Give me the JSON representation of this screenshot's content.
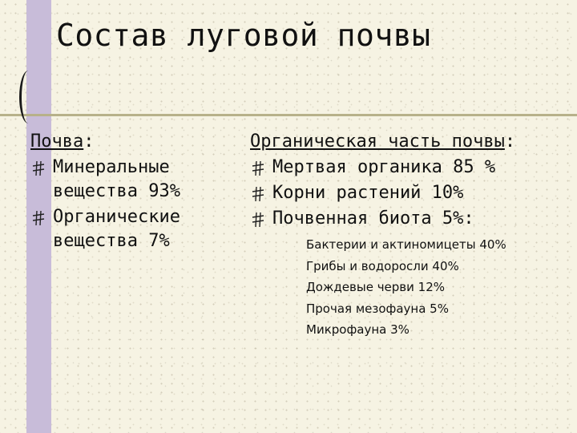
{
  "title": "Состав луговой почвы",
  "left": {
    "heading": "Почва",
    "heading_suffix": ":",
    "items": [
      "Минеральные вещества 93%",
      "Органические вещества 7%"
    ]
  },
  "right": {
    "heading": "Органическая часть почвы",
    "heading_suffix": ":",
    "items": [
      "Мертвая органика 85 %",
      "Корни растений 10%",
      "Почвенная биота 5%:"
    ],
    "biota": [
      "Бактерии и актиномицеты 40%",
      "Грибы и водоросли 40%",
      "Дождевые черви 12%",
      "Прочая мезофауна 5%",
      "Микрофауна 3%"
    ]
  },
  "colors": {
    "band": "#c8bcd9",
    "rule": "#b7b18a",
    "background": "#f6f3e3"
  }
}
